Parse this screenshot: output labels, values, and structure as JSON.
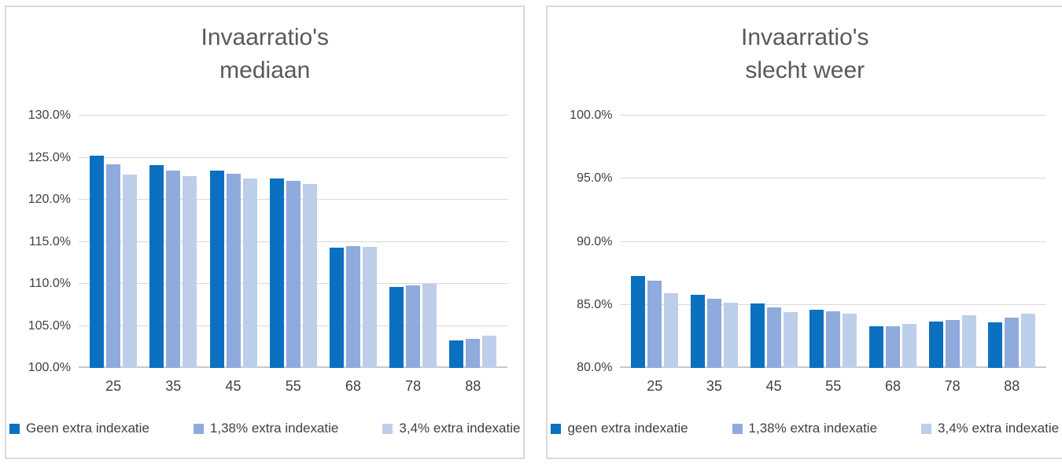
{
  "styles": {
    "panel_border_color": "#d9d9d9",
    "grid_color": "#d9d9d9",
    "title_color": "#595959",
    "axis_text_color": "#404040",
    "series_colors": [
      "#0b70c0",
      "#8faadc",
      "#bdceeb"
    ]
  },
  "chart_data": [
    {
      "type": "bar",
      "title": "Invaarratio's",
      "subtitle": "mediaan",
      "categories": [
        "25",
        "35",
        "45",
        "55",
        "68",
        "78",
        "88"
      ],
      "series": [
        {
          "name": "Geen extra indexatie",
          "color": "#0b70c0",
          "values": [
            125.2,
            124.1,
            123.5,
            122.5,
            114.3,
            109.6,
            103.3
          ]
        },
        {
          "name": "1,38% extra indexatie",
          "color": "#8faadc",
          "values": [
            124.2,
            123.5,
            123.1,
            122.2,
            114.5,
            109.8,
            103.5
          ]
        },
        {
          "name": "3,4% extra indexatie",
          "color": "#bdceeb",
          "values": [
            123.0,
            122.8,
            122.5,
            121.9,
            114.4,
            110.0,
            103.8
          ]
        }
      ],
      "xlabel": "",
      "ylabel": "",
      "ylim": [
        100,
        130
      ],
      "ytick_step": 5,
      "ytick_format": "0.0%",
      "grid": true,
      "legend_position": "bottom"
    },
    {
      "type": "bar",
      "title": "Invaarratio's",
      "subtitle": "slecht weer",
      "categories": [
        "25",
        "35",
        "45",
        "55",
        "68",
        "78",
        "88"
      ],
      "series": [
        {
          "name": "geen extra indexatie",
          "color": "#0b70c0",
          "values": [
            87.3,
            85.8,
            85.1,
            84.6,
            83.3,
            83.7,
            83.6
          ]
        },
        {
          "name": "1,38% extra indexatie",
          "color": "#8faadc",
          "values": [
            86.9,
            85.5,
            84.8,
            84.5,
            83.3,
            83.8,
            84.0
          ]
        },
        {
          "name": "3,4% extra indexatie",
          "color": "#bdceeb",
          "values": [
            85.9,
            85.2,
            84.4,
            84.3,
            83.5,
            84.2,
            84.3
          ]
        }
      ],
      "xlabel": "",
      "ylabel": "",
      "ylim": [
        80,
        100
      ],
      "ytick_step": 5,
      "ytick_format": "0.0%",
      "grid": true,
      "legend_position": "bottom"
    }
  ]
}
